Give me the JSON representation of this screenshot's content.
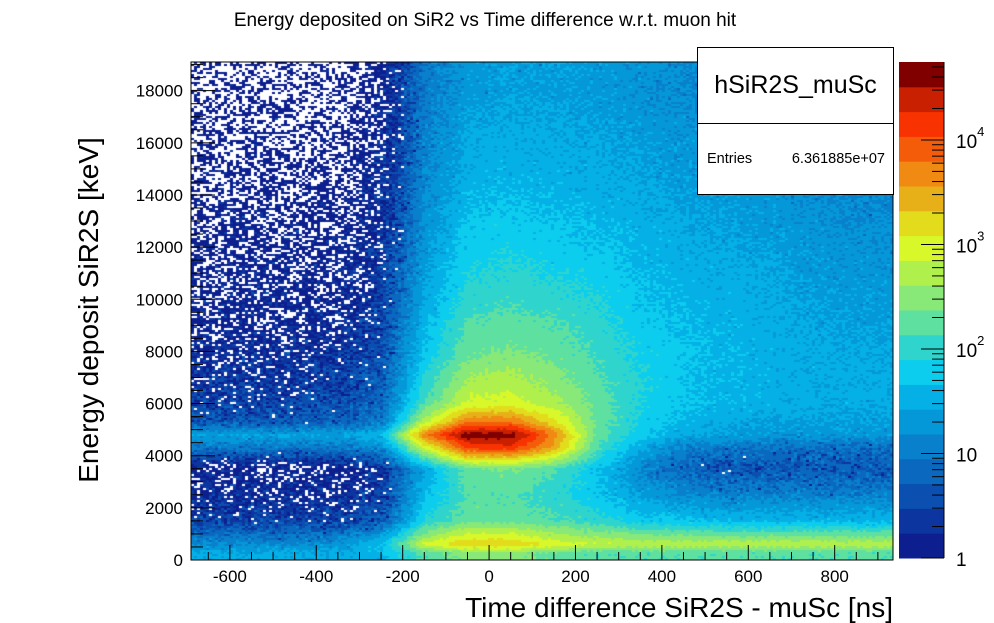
{
  "chart_data": {
    "type": "heatmap",
    "title": "Energy deposited on SiR2 vs Time difference w.r.t. muon hit",
    "xlabel": "Time difference SiR2S - muSc [ns]",
    "ylabel": "Energy deposit SiR2S [keV]",
    "xlim": [
      -690,
      935
    ],
    "ylim": [
      0,
      19100
    ],
    "zlim": [
      1,
      55700
    ],
    "zscale": "log",
    "grid": false,
    "xticks": [
      "-600",
      "-400",
      "-200",
      "0",
      "200",
      "400",
      "600",
      "800"
    ],
    "xtick_values": [
      -600,
      -400,
      -200,
      0,
      200,
      400,
      600,
      800
    ],
    "yticks": [
      "0",
      "2000",
      "4000",
      "6000",
      "8000",
      "10000",
      "12000",
      "14000",
      "16000",
      "18000"
    ],
    "ytick_values": [
      0,
      2000,
      4000,
      6000,
      8000,
      10000,
      12000,
      14000,
      16000,
      18000
    ],
    "zticks": [
      {
        "value": 1,
        "base": "1",
        "exp": ""
      },
      {
        "value": 10,
        "base": "10",
        "exp": ""
      },
      {
        "value": 100,
        "base": "10",
        "exp": "2"
      },
      {
        "value": 1000,
        "base": "10",
        "exp": "3"
      },
      {
        "value": 10000,
        "base": "10",
        "exp": "4"
      }
    ],
    "palette": [
      "#0d1f8f",
      "#0c35a0",
      "#0b4fb0",
      "#0a68bf",
      "#0980cc",
      "#0598d8",
      "#04b0e6",
      "#0ccdee",
      "#2fd5cc",
      "#5ee0a0",
      "#88e878",
      "#b0f04c",
      "#d8f82a",
      "#e2dc1c",
      "#e8b018",
      "#f08a12",
      "#f55c0a",
      "#f83200",
      "#c82000",
      "#800000"
    ],
    "grid_x": [
      -650,
      -550,
      -450,
      -350,
      -250,
      -150,
      -50,
      50,
      150,
      250,
      350,
      450,
      550,
      650,
      750,
      850
    ],
    "grid_y": [
      250,
      600,
      1500,
      2500,
      3500,
      4300,
      4800,
      5300,
      6000,
      7000,
      8000,
      9000,
      10000,
      12000,
      14000,
      16000,
      18000
    ],
    "counts": [
      [
        30,
        30,
        30,
        30,
        40,
        150,
        300,
        300,
        200,
        150,
        150,
        150,
        150,
        150,
        150,
        150
      ],
      [
        15,
        15,
        15,
        20,
        50,
        800,
        2000,
        2000,
        1000,
        700,
        600,
        600,
        600,
        600,
        600,
        600
      ],
      [
        3,
        3,
        3,
        3,
        5,
        80,
        200,
        200,
        150,
        100,
        60,
        50,
        40,
        40,
        40,
        40
      ],
      [
        1.5,
        1.5,
        1.5,
        1.5,
        3,
        40,
        150,
        150,
        100,
        50,
        25,
        15,
        12,
        12,
        12,
        12
      ],
      [
        1,
        1,
        1,
        1,
        2,
        30,
        200,
        250,
        150,
        50,
        15,
        6,
        5,
        5,
        5,
        5
      ],
      [
        10,
        10,
        10,
        10,
        15,
        800,
        12000,
        15000,
        3000,
        150,
        30,
        12,
        10,
        8,
        8,
        8
      ],
      [
        25,
        25,
        25,
        25,
        40,
        5000,
        50000,
        45000,
        5000,
        200,
        60,
        30,
        25,
        20,
        20,
        20
      ],
      [
        5,
        5,
        5,
        6,
        10,
        600,
        6000,
        6000,
        1500,
        200,
        70,
        40,
        30,
        25,
        25,
        25
      ],
      [
        3,
        3,
        3,
        4,
        6,
        150,
        800,
        900,
        500,
        200,
        80,
        50,
        40,
        35,
        30,
        30
      ],
      [
        2,
        2,
        2,
        3,
        5,
        80,
        400,
        500,
        300,
        150,
        80,
        50,
        40,
        35,
        30,
        30
      ],
      [
        1.5,
        1.5,
        1.5,
        2,
        4,
        50,
        200,
        250,
        200,
        120,
        70,
        50,
        40,
        35,
        30,
        28
      ],
      [
        1,
        1,
        1,
        1.5,
        3,
        40,
        150,
        180,
        150,
        100,
        60,
        45,
        38,
        33,
        28,
        25
      ],
      [
        1,
        1,
        1,
        1,
        3,
        30,
        100,
        120,
        100,
        80,
        50,
        40,
        35,
        30,
        25,
        22
      ],
      [
        0.8,
        0.8,
        0.8,
        0.8,
        2,
        20,
        60,
        70,
        60,
        50,
        40,
        32,
        28,
        25,
        20,
        18
      ],
      [
        0.6,
        0.6,
        0.6,
        0.6,
        1.5,
        15,
        40,
        45,
        40,
        35,
        30,
        25,
        22,
        20,
        16,
        14
      ],
      [
        0.5,
        0.5,
        0.5,
        0.5,
        1.2,
        12,
        30,
        32,
        30,
        28,
        24,
        20,
        18,
        15,
        12,
        10
      ],
      [
        0.4,
        0.4,
        0.4,
        0.4,
        1,
        10,
        22,
        25,
        24,
        22,
        18,
        15,
        14,
        12,
        10,
        8
      ]
    ]
  },
  "stats": {
    "name": "hSiR2S_muSc",
    "entries_label": "Entries",
    "entries_value": "6.361885e+07"
  }
}
